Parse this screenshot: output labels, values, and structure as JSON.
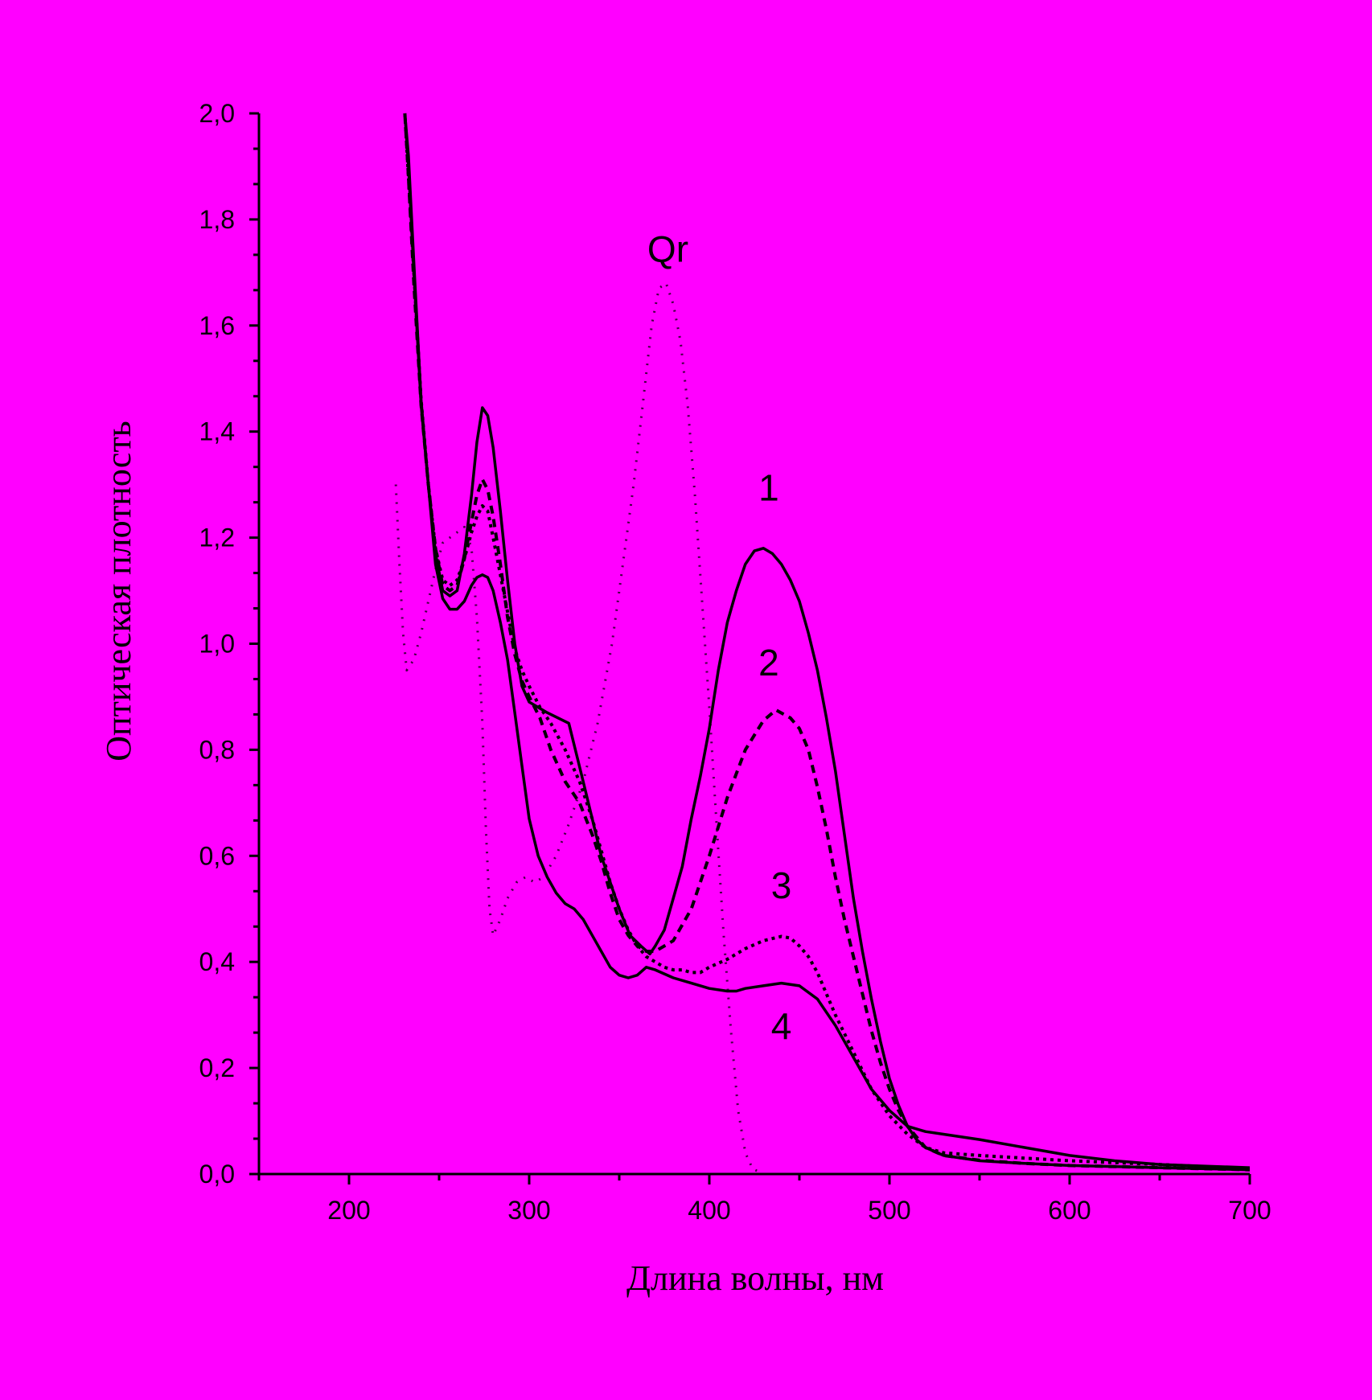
{
  "chart_data": {
    "type": "line",
    "xlabel": "Длина волны, нм",
    "ylabel": "Оптическая плотность",
    "xlim": [
      150,
      700
    ],
    "ylim": [
      0,
      2.0
    ],
    "x_ticks": [
      200,
      300,
      400,
      500,
      600,
      700
    ],
    "x_tick_labels": [
      "200",
      "300",
      "400",
      "500",
      "600",
      "700"
    ],
    "y_ticks": [
      0,
      0.2,
      0.4,
      0.6,
      0.8,
      1.0,
      1.2,
      1.4,
      1.6,
      1.8,
      2.0
    ],
    "y_tick_labels": [
      "0,0",
      "0,2",
      "0,4",
      "0,6",
      "0,8",
      "1,0",
      "1,2",
      "1,4",
      "1,6",
      "1,8",
      "2,0"
    ],
    "grid": false,
    "background_color": "#ff00ff",
    "line_color": "#000000",
    "series": [
      {
        "name": "1",
        "style": "solid",
        "width": 3.5,
        "label_at": [
          433,
          1.27
        ],
        "points": [
          [
            231,
            2.0
          ],
          [
            233,
            1.9
          ],
          [
            236,
            1.7
          ],
          [
            240,
            1.45
          ],
          [
            244,
            1.3
          ],
          [
            248,
            1.17
          ],
          [
            252,
            1.1
          ],
          [
            256,
            1.09
          ],
          [
            260,
            1.1
          ],
          [
            264,
            1.17
          ],
          [
            268,
            1.28
          ],
          [
            271,
            1.38
          ],
          [
            274,
            1.445
          ],
          [
            277,
            1.43
          ],
          [
            280,
            1.37
          ],
          [
            284,
            1.25
          ],
          [
            288,
            1.12
          ],
          [
            292,
            1.0
          ],
          [
            296,
            0.92
          ],
          [
            300,
            0.89
          ],
          [
            310,
            0.87
          ],
          [
            322,
            0.85
          ],
          [
            330,
            0.74
          ],
          [
            340,
            0.6
          ],
          [
            350,
            0.5
          ],
          [
            356,
            0.45
          ],
          [
            362,
            0.43
          ],
          [
            367,
            0.415
          ],
          [
            370,
            0.43
          ],
          [
            375,
            0.46
          ],
          [
            380,
            0.52
          ],
          [
            385,
            0.58
          ],
          [
            390,
            0.67
          ],
          [
            395,
            0.75
          ],
          [
            400,
            0.84
          ],
          [
            405,
            0.95
          ],
          [
            410,
            1.04
          ],
          [
            415,
            1.1
          ],
          [
            420,
            1.15
          ],
          [
            425,
            1.175
          ],
          [
            430,
            1.18
          ],
          [
            435,
            1.17
          ],
          [
            440,
            1.15
          ],
          [
            445,
            1.12
          ],
          [
            450,
            1.08
          ],
          [
            455,
            1.02
          ],
          [
            460,
            0.95
          ],
          [
            465,
            0.86
          ],
          [
            470,
            0.76
          ],
          [
            475,
            0.64
          ],
          [
            480,
            0.52
          ],
          [
            485,
            0.42
          ],
          [
            490,
            0.33
          ],
          [
            495,
            0.25
          ],
          [
            500,
            0.18
          ],
          [
            505,
            0.13
          ],
          [
            510,
            0.09
          ],
          [
            515,
            0.065
          ],
          [
            520,
            0.05
          ],
          [
            530,
            0.035
          ],
          [
            550,
            0.025
          ],
          [
            575,
            0.02
          ],
          [
            600,
            0.016
          ],
          [
            650,
            0.012
          ],
          [
            700,
            0.008
          ]
        ]
      },
      {
        "name": "2",
        "style": "dashed",
        "width": 4,
        "label_at": [
          433,
          0.94
        ],
        "points": [
          [
            231,
            2.0
          ],
          [
            233,
            1.88
          ],
          [
            236,
            1.68
          ],
          [
            240,
            1.45
          ],
          [
            244,
            1.3
          ],
          [
            248,
            1.18
          ],
          [
            252,
            1.11
          ],
          [
            256,
            1.1
          ],
          [
            260,
            1.11
          ],
          [
            264,
            1.16
          ],
          [
            268,
            1.23
          ],
          [
            271,
            1.28
          ],
          [
            274,
            1.31
          ],
          [
            277,
            1.29
          ],
          [
            280,
            1.24
          ],
          [
            284,
            1.15
          ],
          [
            288,
            1.05
          ],
          [
            292,
            0.98
          ],
          [
            296,
            0.93
          ],
          [
            300,
            0.9
          ],
          [
            306,
            0.86
          ],
          [
            312,
            0.8
          ],
          [
            320,
            0.74
          ],
          [
            328,
            0.7
          ],
          [
            335,
            0.64
          ],
          [
            340,
            0.59
          ],
          [
            345,
            0.53
          ],
          [
            350,
            0.48
          ],
          [
            355,
            0.45
          ],
          [
            360,
            0.43
          ],
          [
            365,
            0.42
          ],
          [
            370,
            0.42
          ],
          [
            380,
            0.44
          ],
          [
            390,
            0.5
          ],
          [
            400,
            0.6
          ],
          [
            410,
            0.71
          ],
          [
            420,
            0.8
          ],
          [
            430,
            0.855
          ],
          [
            437,
            0.875
          ],
          [
            445,
            0.86
          ],
          [
            450,
            0.84
          ],
          [
            455,
            0.8
          ],
          [
            460,
            0.73
          ],
          [
            465,
            0.65
          ],
          [
            470,
            0.56
          ],
          [
            475,
            0.48
          ],
          [
            480,
            0.41
          ],
          [
            485,
            0.34
          ],
          [
            490,
            0.27
          ],
          [
            495,
            0.21
          ],
          [
            500,
            0.16
          ],
          [
            505,
            0.12
          ],
          [
            510,
            0.09
          ],
          [
            515,
            0.07
          ],
          [
            520,
            0.05
          ],
          [
            530,
            0.035
          ],
          [
            550,
            0.026
          ],
          [
            575,
            0.02
          ],
          [
            600,
            0.016
          ],
          [
            650,
            0.012
          ],
          [
            700,
            0.008
          ]
        ]
      },
      {
        "name": "3",
        "style": "dotted",
        "width": 4,
        "label_at": [
          440,
          0.52
        ],
        "points": [
          [
            231,
            2.0
          ],
          [
            233,
            1.88
          ],
          [
            236,
            1.7
          ],
          [
            240,
            1.46
          ],
          [
            244,
            1.3
          ],
          [
            248,
            1.18
          ],
          [
            252,
            1.12
          ],
          [
            256,
            1.11
          ],
          [
            260,
            1.12
          ],
          [
            264,
            1.16
          ],
          [
            268,
            1.21
          ],
          [
            271,
            1.24
          ],
          [
            274,
            1.26
          ],
          [
            277,
            1.25
          ],
          [
            280,
            1.2
          ],
          [
            284,
            1.13
          ],
          [
            288,
            1.06
          ],
          [
            292,
            0.99
          ],
          [
            296,
            0.95
          ],
          [
            300,
            0.92
          ],
          [
            306,
            0.88
          ],
          [
            312,
            0.85
          ],
          [
            320,
            0.8
          ],
          [
            328,
            0.74
          ],
          [
            335,
            0.67
          ],
          [
            340,
            0.61
          ],
          [
            345,
            0.55
          ],
          [
            350,
            0.5
          ],
          [
            355,
            0.46
          ],
          [
            360,
            0.43
          ],
          [
            365,
            0.41
          ],
          [
            370,
            0.4
          ],
          [
            375,
            0.39
          ],
          [
            380,
            0.385
          ],
          [
            385,
            0.385
          ],
          [
            390,
            0.38
          ],
          [
            395,
            0.38
          ],
          [
            400,
            0.39
          ],
          [
            410,
            0.405
          ],
          [
            420,
            0.425
          ],
          [
            430,
            0.44
          ],
          [
            440,
            0.448
          ],
          [
            445,
            0.445
          ],
          [
            450,
            0.43
          ],
          [
            455,
            0.41
          ],
          [
            460,
            0.38
          ],
          [
            465,
            0.34
          ],
          [
            470,
            0.3
          ],
          [
            480,
            0.23
          ],
          [
            490,
            0.16
          ],
          [
            500,
            0.11
          ],
          [
            510,
            0.075
          ],
          [
            520,
            0.05
          ],
          [
            530,
            0.04
          ],
          [
            550,
            0.035
          ],
          [
            575,
            0.03
          ],
          [
            600,
            0.025
          ],
          [
            650,
            0.018
          ],
          [
            700,
            0.01
          ]
        ]
      },
      {
        "name": "4",
        "style": "solid",
        "width": 3.5,
        "label_at": [
          440,
          0.255
        ],
        "points": [
          [
            231,
            2.0
          ],
          [
            233,
            1.92
          ],
          [
            236,
            1.72
          ],
          [
            240,
            1.46
          ],
          [
            244,
            1.3
          ],
          [
            248,
            1.15
          ],
          [
            252,
            1.085
          ],
          [
            256,
            1.065
          ],
          [
            260,
            1.065
          ],
          [
            264,
            1.08
          ],
          [
            268,
            1.11
          ],
          [
            271,
            1.125
          ],
          [
            274,
            1.13
          ],
          [
            277,
            1.125
          ],
          [
            280,
            1.1
          ],
          [
            284,
            1.04
          ],
          [
            288,
            0.97
          ],
          [
            292,
            0.87
          ],
          [
            296,
            0.77
          ],
          [
            300,
            0.67
          ],
          [
            305,
            0.6
          ],
          [
            310,
            0.56
          ],
          [
            315,
            0.53
          ],
          [
            320,
            0.51
          ],
          [
            325,
            0.5
          ],
          [
            330,
            0.48
          ],
          [
            335,
            0.45
          ],
          [
            340,
            0.42
          ],
          [
            345,
            0.39
          ],
          [
            350,
            0.375
          ],
          [
            355,
            0.37
          ],
          [
            360,
            0.375
          ],
          [
            365,
            0.39
          ],
          [
            370,
            0.385
          ],
          [
            380,
            0.37
          ],
          [
            390,
            0.36
          ],
          [
            400,
            0.35
          ],
          [
            410,
            0.345
          ],
          [
            415,
            0.345
          ],
          [
            420,
            0.35
          ],
          [
            430,
            0.355
          ],
          [
            440,
            0.36
          ],
          [
            450,
            0.355
          ],
          [
            460,
            0.33
          ],
          [
            470,
            0.28
          ],
          [
            480,
            0.22
          ],
          [
            490,
            0.16
          ],
          [
            500,
            0.12
          ],
          [
            510,
            0.09
          ],
          [
            520,
            0.08
          ],
          [
            530,
            0.075
          ],
          [
            550,
            0.065
          ],
          [
            575,
            0.05
          ],
          [
            600,
            0.035
          ],
          [
            625,
            0.025
          ],
          [
            650,
            0.018
          ],
          [
            700,
            0.012
          ]
        ]
      },
      {
        "name": "Qr",
        "style": "sparse-dotted",
        "width": 3,
        "label_at": [
          377,
          1.72
        ],
        "points": [
          [
            226,
            1.3
          ],
          [
            228,
            1.15
          ],
          [
            230,
            1.02
          ],
          [
            232,
            0.95
          ],
          [
            236,
            0.97
          ],
          [
            240,
            1.02
          ],
          [
            244,
            1.08
          ],
          [
            248,
            1.14
          ],
          [
            252,
            1.19
          ],
          [
            256,
            1.2
          ],
          [
            260,
            1.21
          ],
          [
            264,
            1.22
          ],
          [
            268,
            1.18
          ],
          [
            271,
            1.05
          ],
          [
            274,
            0.85
          ],
          [
            276,
            0.65
          ],
          [
            278,
            0.5
          ],
          [
            280,
            0.45
          ],
          [
            284,
            0.48
          ],
          [
            288,
            0.52
          ],
          [
            293,
            0.55
          ],
          [
            298,
            0.56
          ],
          [
            303,
            0.55
          ],
          [
            308,
            0.56
          ],
          [
            315,
            0.6
          ],
          [
            322,
            0.66
          ],
          [
            330,
            0.74
          ],
          [
            338,
            0.85
          ],
          [
            346,
            1.0
          ],
          [
            352,
            1.15
          ],
          [
            358,
            1.3
          ],
          [
            364,
            1.48
          ],
          [
            368,
            1.6
          ],
          [
            372,
            1.67
          ],
          [
            376,
            1.68
          ],
          [
            380,
            1.64
          ],
          [
            384,
            1.57
          ],
          [
            388,
            1.45
          ],
          [
            392,
            1.28
          ],
          [
            396,
            1.08
          ],
          [
            400,
            0.88
          ],
          [
            404,
            0.66
          ],
          [
            408,
            0.45
          ],
          [
            412,
            0.27
          ],
          [
            416,
            0.12
          ],
          [
            420,
            0.04
          ],
          [
            424,
            0.01
          ],
          [
            430,
            0.0
          ]
        ]
      }
    ]
  }
}
